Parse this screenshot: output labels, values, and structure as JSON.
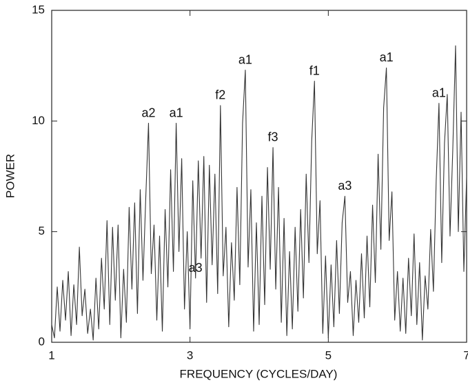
{
  "chart_data": {
    "type": "line",
    "x_label": "FREQUENCY (CYCLES/DAY)",
    "y_label": "POWER",
    "x": [
      1.0,
      1.04,
      1.08,
      1.12,
      1.16,
      1.2,
      1.24,
      1.28,
      1.32,
      1.36,
      1.4,
      1.44,
      1.48,
      1.52,
      1.56,
      1.6,
      1.64,
      1.68,
      1.72,
      1.76,
      1.8,
      1.84,
      1.88,
      1.92,
      1.96,
      2.0,
      2.04,
      2.08,
      2.12,
      2.16,
      2.2,
      2.24,
      2.28,
      2.32,
      2.36,
      2.4,
      2.44,
      2.48,
      2.52,
      2.56,
      2.6,
      2.64,
      2.68,
      2.72,
      2.76,
      2.8,
      2.84,
      2.88,
      2.92,
      2.96,
      3.0,
      3.04,
      3.08,
      3.12,
      3.16,
      3.2,
      3.24,
      3.28,
      3.32,
      3.36,
      3.4,
      3.44,
      3.48,
      3.52,
      3.56,
      3.6,
      3.64,
      3.68,
      3.72,
      3.76,
      3.8,
      3.84,
      3.88,
      3.92,
      3.96,
      4.0,
      4.04,
      4.08,
      4.12,
      4.16,
      4.2,
      4.24,
      4.28,
      4.32,
      4.36,
      4.4,
      4.44,
      4.48,
      4.52,
      4.56,
      4.6,
      4.64,
      4.68,
      4.72,
      4.76,
      4.8,
      4.84,
      4.88,
      4.92,
      4.96,
      5.0,
      5.04,
      5.08,
      5.12,
      5.16,
      5.2,
      5.24,
      5.28,
      5.32,
      5.36,
      5.4,
      5.44,
      5.48,
      5.52,
      5.56,
      5.6,
      5.64,
      5.68,
      5.72,
      5.76,
      5.8,
      5.84,
      5.88,
      5.92,
      5.96,
      6.0,
      6.04,
      6.08,
      6.12,
      6.16,
      6.2,
      6.24,
      6.28,
      6.32,
      6.36,
      6.4,
      6.44,
      6.48,
      6.52,
      6.56,
      6.6,
      6.64,
      6.68,
      6.72,
      6.76,
      6.8,
      6.84,
      6.88,
      6.92,
      6.96,
      7.0
    ],
    "series": [
      {
        "color": "#333333",
        "values": [
          0.8,
          0.2,
          2.5,
          0.5,
          2.8,
          1.0,
          3.2,
          0.3,
          2.6,
          0.8,
          4.3,
          1.2,
          2.4,
          0.4,
          1.5,
          0.1,
          2.9,
          0.6,
          3.8,
          1.5,
          5.5,
          0.8,
          5.2,
          1.9,
          5.3,
          0.2,
          3.3,
          0.9,
          6.1,
          2.4,
          6.3,
          1.3,
          6.9,
          2.8,
          6.5,
          9.9,
          3.1,
          5.3,
          1.0,
          4.8,
          0.5,
          6.0,
          2.5,
          7.8,
          3.2,
          9.9,
          4.1,
          8.3,
          1.5,
          5.0,
          0.6,
          7.3,
          2.9,
          8.2,
          3.8,
          8.4,
          1.8,
          8.0,
          3.5,
          7.6,
          2.2,
          10.7,
          3.0,
          5.2,
          0.7,
          4.5,
          1.9,
          7.0,
          2.6,
          9.9,
          12.3,
          3.4,
          6.9,
          0.5,
          5.4,
          0.8,
          6.6,
          1.7,
          7.9,
          3.3,
          8.8,
          2.4,
          7.0,
          0.9,
          5.6,
          0.3,
          4.1,
          0.6,
          5.2,
          1.4,
          6.0,
          2.0,
          7.6,
          3.6,
          9.1,
          11.8,
          4.0,
          6.4,
          0.4,
          3.9,
          0.2,
          3.5,
          0.7,
          4.6,
          1.3,
          5.4,
          6.6,
          1.8,
          3.2,
          0.3,
          2.8,
          0.9,
          4.0,
          1.1,
          4.8,
          1.6,
          6.2,
          2.7,
          8.5,
          4.2,
          10.6,
          12.4,
          4.6,
          6.8,
          1.0,
          3.2,
          0.5,
          2.9,
          0.4,
          3.8,
          1.2,
          4.9,
          0.8,
          3.6,
          0.1,
          3.0,
          1.5,
          5.1,
          2.3,
          7.3,
          10.8,
          3.6,
          9.0,
          11.2,
          4.8,
          8.7,
          13.4,
          5.0,
          10.4,
          3.2,
          7.5
        ]
      }
    ],
    "annotations": [
      {
        "text": "a2",
        "x": 2.4
      },
      {
        "text": "a1",
        "x": 2.8
      },
      {
        "text": "a3",
        "x": 3.08
      },
      {
        "text": "f2",
        "x": 3.44
      },
      {
        "text": "a1",
        "x": 3.8
      },
      {
        "text": "f3",
        "x": 4.2
      },
      {
        "text": "f1",
        "x": 4.8
      },
      {
        "text": "a3",
        "x": 5.24
      },
      {
        "text": "a1",
        "x": 5.84
      },
      {
        "text": "a1",
        "x": 6.6
      }
    ],
    "xlim": [
      1,
      7
    ],
    "xticks": [
      1,
      3,
      5,
      7
    ],
    "ylim": [
      0,
      15
    ],
    "yticks": [
      0,
      5,
      10,
      15
    ]
  }
}
